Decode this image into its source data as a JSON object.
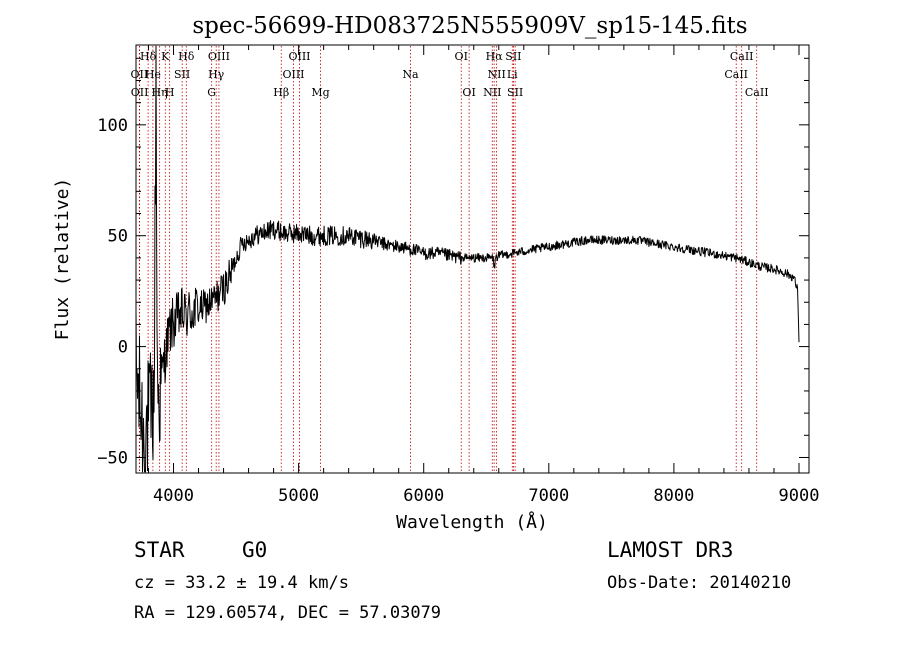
{
  "colors": {
    "spectrum": "#000000",
    "line_marker": "#c00000",
    "axis": "#000000",
    "background": "#ffffff"
  },
  "chart_data": {
    "type": "line",
    "title": "spec-56699-HD083725N555909V_sp15-145.fits",
    "xlabel": "Wavelength (Å)",
    "ylabel": "Flux (relative)",
    "xlim": [
      3700,
      9080
    ],
    "ylim": [
      -57,
      136
    ],
    "xticks": [
      4000,
      5000,
      6000,
      7000,
      8000,
      9000
    ],
    "yticks": [
      -50,
      0,
      50,
      100
    ],
    "xtick_labels": [
      "4000",
      "5000",
      "6000",
      "7000",
      "8000",
      "9000"
    ],
    "ytick_labels": [
      "−50",
      "0",
      "50",
      "100"
    ],
    "grid": false,
    "series": [
      {
        "name": "flux",
        "noise": [
          [
            3700,
            3900,
            30
          ],
          [
            3900,
            4200,
            12
          ],
          [
            4200,
            4480,
            8
          ],
          [
            4480,
            5600,
            4.5
          ],
          [
            5600,
            6300,
            3
          ],
          [
            6300,
            9000,
            2
          ]
        ],
        "x": [
          3700,
          3720,
          3740,
          3760,
          3790,
          3820,
          3845,
          3860,
          3870,
          3880,
          3900,
          3930,
          3960,
          3990,
          4020,
          4060,
          4100,
          4150,
          4200,
          4250,
          4300,
          4340,
          4380,
          4420,
          4460,
          4500,
          4550,
          4600,
          4650,
          4700,
          4750,
          4800,
          4850,
          4900,
          5000,
          5100,
          5200,
          5300,
          5400,
          5500,
          5600,
          5700,
          5800,
          5900,
          6000,
          6100,
          6200,
          6300,
          6400,
          6500,
          6555,
          6563,
          6575,
          6600,
          6700,
          6800,
          6900,
          7000,
          7100,
          7200,
          7300,
          7400,
          7500,
          7600,
          7700,
          7800,
          7900,
          8000,
          8100,
          8200,
          8300,
          8400,
          8500,
          8600,
          8700,
          8800,
          8900,
          8960,
          8990,
          9000
        ],
        "y": [
          -10,
          -20,
          -30,
          -40,
          -35,
          -30,
          -25,
          130,
          -10,
          -25,
          -15,
          -5,
          5,
          10,
          12,
          15,
          14,
          16,
          17,
          18,
          20,
          22,
          25,
          28,
          33,
          40,
          47,
          48,
          50,
          51,
          52,
          53,
          52,
          51,
          51,
          50,
          50,
          50,
          50,
          49,
          48,
          46,
          45,
          44,
          42,
          42,
          41,
          40,
          40,
          40,
          40,
          35,
          40,
          41,
          42,
          43,
          44,
          45,
          46,
          47,
          48,
          48,
          48,
          48,
          48,
          47,
          46,
          45,
          44,
          43,
          42,
          41,
          40,
          38,
          36,
          35,
          33,
          31,
          25,
          2
        ]
      }
    ],
    "lines": [
      {
        "name": "Hδ",
        "w": 3797,
        "row": 0
      },
      {
        "name": "OII",
        "w": 3727,
        "row": 1
      },
      {
        "name": "He",
        "w": 3835,
        "row": 1
      },
      {
        "name": "OII",
        "w": 3729,
        "row": 2
      },
      {
        "name": "Hη",
        "w": 3889,
        "row": 2
      },
      {
        "name": "K",
        "w": 3934,
        "row": 0
      },
      {
        "name": "SII",
        "w": 4069,
        "row": 1
      },
      {
        "name": "H",
        "w": 3969,
        "row": 2
      },
      {
        "name": "Hδ",
        "w": 4102,
        "row": 0
      },
      {
        "name": "OIII",
        "w": 4363,
        "row": 0
      },
      {
        "name": "Hγ",
        "w": 4341,
        "row": 1
      },
      {
        "name": "G",
        "w": 4305,
        "row": 2
      },
      {
        "name": "OIII",
        "w": 5007,
        "row": 0
      },
      {
        "name": "OIII",
        "w": 4959,
        "row": 1
      },
      {
        "name": "Hβ",
        "w": 4861,
        "row": 2
      },
      {
        "name": "Mg",
        "w": 5175,
        "row": 2
      },
      {
        "name": "Na",
        "w": 5894,
        "row": 1
      },
      {
        "name": "OI",
        "w": 6300,
        "row": 0
      },
      {
        "name": "OI",
        "w": 6363,
        "row": 2
      },
      {
        "name": "Hα",
        "w": 6563,
        "row": 0
      },
      {
        "name": "NII",
        "w": 6583,
        "row": 1
      },
      {
        "name": "NII",
        "w": 6548,
        "row": 2
      },
      {
        "name": "SII",
        "w": 6717,
        "row": 0
      },
      {
        "name": "Li",
        "w": 6708,
        "row": 1
      },
      {
        "name": "SII",
        "w": 6731,
        "row": 2
      },
      {
        "name": "CaII",
        "w": 8542,
        "row": 0
      },
      {
        "name": "CaII",
        "w": 8498,
        "row": 1
      },
      {
        "name": "CaII",
        "w": 8662,
        "row": 2
      }
    ]
  },
  "info": {
    "obj_class": "STAR",
    "subclass": "G0",
    "survey": "LAMOST DR3",
    "cz": "cz = 33.2 ± 19.4 km/s",
    "obs_date": "Obs-Date: 20140210",
    "radec": "RA = 129.60574, DEC =  57.03079"
  }
}
